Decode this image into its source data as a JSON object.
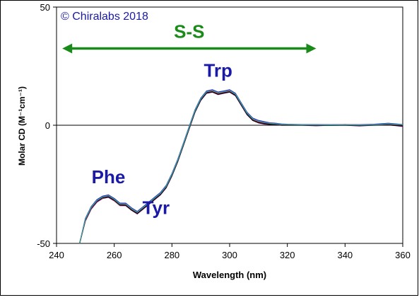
{
  "chart_data": {
    "type": "line",
    "title": "",
    "copyright": "© Chiralabs 2018",
    "xlabel": "Wavelength (nm)",
    "ylabel": "Molar CD (M⁻¹cm⁻¹)",
    "xlim": [
      240,
      360
    ],
    "ylim": [
      -50,
      50
    ],
    "x_ticks": [
      240,
      260,
      280,
      300,
      320,
      340,
      360
    ],
    "y_ticks": [
      -50,
      0,
      50
    ],
    "y_tick_labels": [
      "-50",
      "0",
      "50"
    ],
    "grid": false,
    "zero_line": true,
    "annotations": [
      {
        "text": "S-S",
        "x": 286,
        "y": 37,
        "color": "#1a8a1a"
      },
      {
        "text": "Trp",
        "x": 296,
        "y": 20.5,
        "color": "#1a1aa6"
      },
      {
        "text": "Phe",
        "x": 258,
        "y": -24.5,
        "color": "#1a1aa6"
      },
      {
        "text": "Tyr",
        "x": 274.5,
        "y": -37.5,
        "color": "#1a1aa6"
      }
    ],
    "arrow": {
      "x_start": 242,
      "x_end": 330,
      "y": 32.5,
      "color": "#1a8a1a"
    },
    "series": [
      {
        "color": "#e0007a",
        "x": [
          248,
          250,
          252,
          254,
          256,
          258,
          260,
          262,
          264,
          266,
          268,
          270,
          272,
          274,
          276,
          278,
          280,
          282,
          284,
          286,
          288,
          290,
          292,
          294,
          296,
          298,
          300,
          302,
          304,
          306,
          308,
          310,
          312,
          314,
          316,
          318,
          320,
          325,
          330,
          335,
          340,
          345,
          350,
          355,
          360
        ],
        "y": [
          -50,
          -40,
          -35,
          -32,
          -30.5,
          -30,
          -31.5,
          -33.5,
          -33.5,
          -35.5,
          -37,
          -35,
          -33,
          -31,
          -29,
          -26,
          -21,
          -15,
          -8,
          -1,
          6,
          11,
          14,
          14.5,
          13.5,
          14,
          14.5,
          13,
          9,
          5,
          2.5,
          1.5,
          1,
          0.7,
          0.5,
          0.3,
          0.3,
          0.2,
          0.2,
          0,
          0.3,
          0,
          0.2,
          0.5,
          0
        ]
      },
      {
        "color": "#7a0080",
        "x": [
          248,
          250,
          252,
          254,
          256,
          258,
          260,
          262,
          264,
          266,
          268,
          270,
          272,
          274,
          276,
          278,
          280,
          282,
          284,
          286,
          288,
          290,
          292,
          294,
          296,
          298,
          300,
          302,
          304,
          306,
          308,
          310,
          312,
          314,
          316,
          318,
          320,
          325,
          330,
          335,
          340,
          345,
          350,
          355,
          360
        ],
        "y": [
          -50,
          -40.5,
          -35.5,
          -32.5,
          -31,
          -30.5,
          -32,
          -34,
          -34,
          -36,
          -37.5,
          -35.5,
          -33.5,
          -31.5,
          -29.5,
          -26.5,
          -21.5,
          -15.5,
          -8.5,
          -1.5,
          5.5,
          10.5,
          13.5,
          14,
          13,
          13.5,
          14,
          12.5,
          8.5,
          4.5,
          2,
          1,
          0.5,
          0.3,
          0.2,
          0,
          0,
          0,
          -0.2,
          0,
          0,
          -0.3,
          0,
          0.2,
          -0.5
        ]
      },
      {
        "color": "#2020c0",
        "x": [
          248,
          250,
          252,
          254,
          256,
          258,
          260,
          262,
          264,
          266,
          268,
          270,
          272,
          274,
          276,
          278,
          280,
          282,
          284,
          286,
          288,
          290,
          292,
          294,
          296,
          298,
          300,
          302,
          304,
          306,
          308,
          310,
          312,
          314,
          316,
          318,
          320,
          325,
          330,
          335,
          340,
          345,
          350,
          355,
          360
        ],
        "y": [
          -50,
          -39.5,
          -34.5,
          -31.5,
          -30,
          -29.5,
          -31,
          -33,
          -33,
          -35,
          -36.5,
          -34.5,
          -32.5,
          -30.5,
          -28.5,
          -25.5,
          -20.5,
          -14.5,
          -7.5,
          -0.5,
          6.5,
          11.5,
          14.5,
          15,
          14,
          14.5,
          15,
          13.5,
          9.5,
          5.5,
          3,
          2,
          1.5,
          1,
          0.8,
          0.5,
          0.4,
          0.3,
          0.3,
          0.2,
          0.3,
          0.2,
          0.4,
          0.8,
          0.3
        ]
      },
      {
        "color": "#c0a000",
        "x": [
          248,
          250,
          252,
          254,
          256,
          258,
          260,
          262,
          264,
          266,
          268,
          270,
          272,
          274,
          276,
          278,
          280,
          282,
          284,
          286,
          288,
          290,
          292,
          294,
          296,
          298,
          300,
          302,
          304,
          306,
          308,
          310,
          312,
          314,
          316,
          318,
          320,
          325,
          330,
          335,
          340,
          345,
          350,
          355,
          360
        ],
        "y": [
          -50,
          -40,
          -35,
          -32,
          -30.8,
          -30.2,
          -31.8,
          -33.8,
          -33.8,
          -35.8,
          -37.2,
          -35.2,
          -33.2,
          -31.2,
          -29.2,
          -26.2,
          -21.2,
          -15.2,
          -8.2,
          -1.2,
          5.8,
          10.8,
          13.8,
          14.2,
          13.2,
          13.8,
          14.2,
          12.8,
          8.8,
          4.8,
          2.2,
          1.2,
          0.8,
          0.5,
          0.3,
          0.1,
          0.2,
          0.1,
          0,
          0.1,
          0.1,
          0,
          0.1,
          0.3,
          0.1
        ]
      },
      {
        "color": "#d02020",
        "x": [
          248,
          250,
          252,
          254,
          256,
          258,
          260,
          262,
          264,
          266,
          268,
          270,
          272,
          274,
          276,
          278,
          280,
          282,
          284,
          286,
          288,
          290,
          292,
          294,
          296,
          298,
          300,
          302,
          304,
          306,
          308,
          310,
          312,
          314,
          316,
          318,
          320,
          325,
          330,
          335,
          340,
          345,
          350,
          355,
          360
        ],
        "y": [
          -50,
          -40.2,
          -35.2,
          -32.2,
          -30.6,
          -30.1,
          -31.6,
          -33.6,
          -33.7,
          -35.7,
          -37.1,
          -35.1,
          -33.1,
          -31.1,
          -29.1,
          -26.1,
          -21.1,
          -15.1,
          -8.1,
          -1.1,
          5.9,
          10.9,
          13.9,
          14.4,
          13.4,
          13.9,
          14.4,
          12.9,
          8.9,
          4.9,
          2.4,
          1.4,
          0.9,
          0.6,
          0.4,
          0.2,
          0.2,
          0.1,
          0.1,
          0,
          0.2,
          0.1,
          0.1,
          0.4,
          0
        ]
      },
      {
        "color": "#101010",
        "x": [
          248,
          250,
          252,
          254,
          256,
          258,
          260,
          262,
          264,
          266,
          268,
          270,
          272,
          274,
          276,
          278,
          280,
          282,
          284,
          286,
          288,
          290,
          292,
          294,
          296,
          298,
          300,
          302,
          304,
          306,
          308,
          310,
          312,
          314,
          316,
          318,
          320,
          325,
          330,
          335,
          340,
          345,
          350,
          355,
          360
        ],
        "y": [
          -50,
          -40.1,
          -35.1,
          -32.1,
          -30.7,
          -30.3,
          -31.7,
          -33.7,
          -33.9,
          -35.9,
          -37.3,
          -35.3,
          -33.3,
          -31.3,
          -29.3,
          -26.3,
          -21.3,
          -15.3,
          -8.3,
          -1.3,
          5.7,
          10.7,
          13.7,
          14.1,
          13.1,
          13.7,
          14.1,
          12.7,
          8.7,
          4.7,
          2.1,
          1.1,
          0.7,
          0.4,
          0.2,
          0,
          0,
          0,
          0,
          -0.1,
          0,
          -0.1,
          0,
          0.1,
          -0.2
        ]
      },
      {
        "color": "#40a0a0",
        "x": [
          248,
          250,
          252,
          254,
          256,
          258,
          260,
          262,
          264,
          266,
          268,
          270,
          272,
          274,
          276,
          278,
          280,
          282,
          284,
          286,
          288,
          290,
          292,
          294,
          296,
          298,
          300,
          302,
          304,
          306,
          308,
          310,
          312,
          314,
          316,
          318,
          320,
          325,
          330,
          335,
          340,
          345,
          350,
          355,
          360
        ],
        "y": [
          -50,
          -39.8,
          -34.8,
          -31.8,
          -30.3,
          -29.8,
          -31.3,
          -33.3,
          -33.3,
          -35.3,
          -36.8,
          -34.8,
          -32.8,
          -30.8,
          -28.8,
          -25.8,
          -20.8,
          -14.8,
          -7.8,
          -0.8,
          6.2,
          11.2,
          14.2,
          14.7,
          13.7,
          14.2,
          14.7,
          13.2,
          9.2,
          5.2,
          2.7,
          1.7,
          1.2,
          0.8,
          0.6,
          0.4,
          0.3,
          0.2,
          0.2,
          0.1,
          0.2,
          0.1,
          0.2,
          0.6,
          0.2
        ]
      }
    ]
  }
}
